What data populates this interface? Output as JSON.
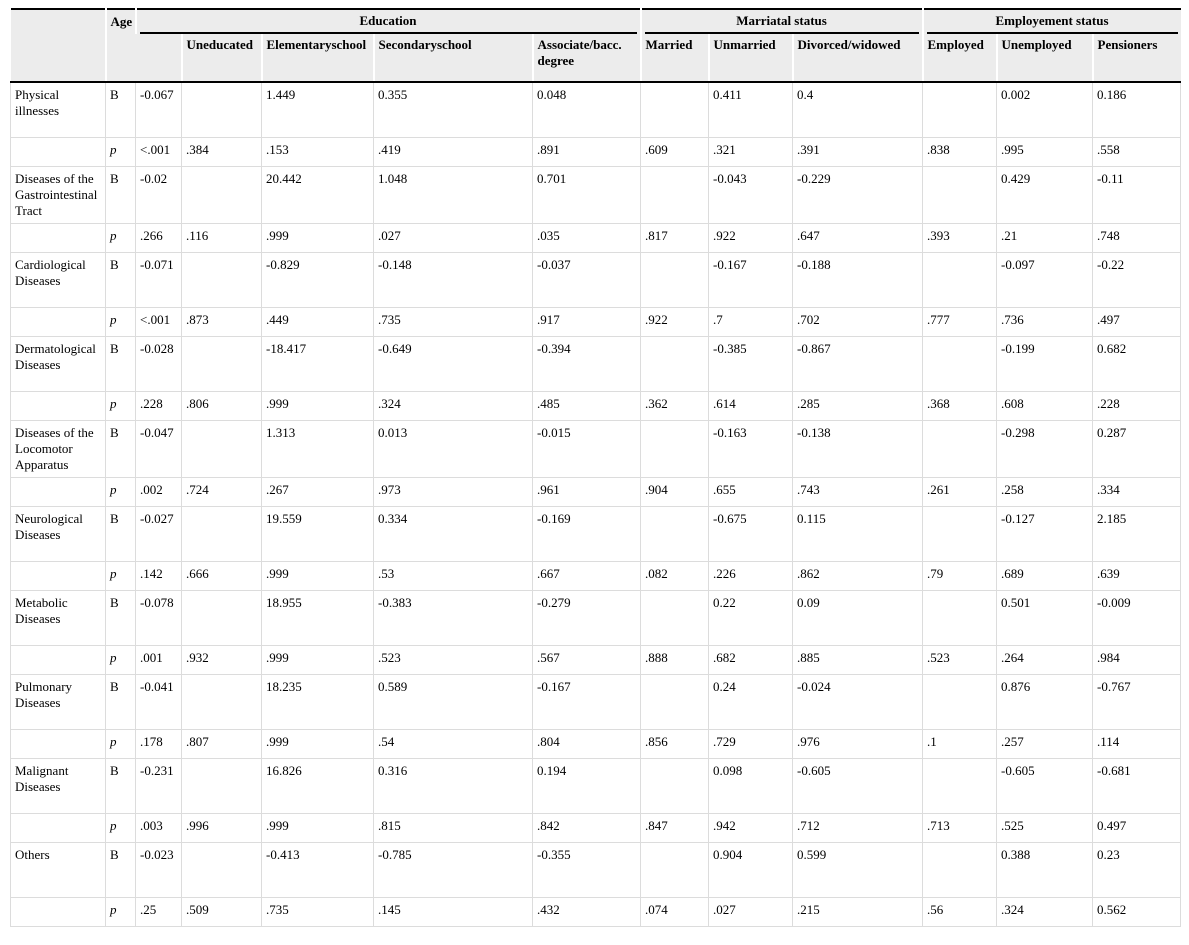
{
  "table": {
    "header": {
      "age_label": "Age",
      "groups": [
        {
          "label": "Education",
          "columns": [
            "Uneducated",
            "Elementaryschool",
            "Secondaryschool",
            "Associate/bacc. degree"
          ]
        },
        {
          "label": "Marriatal status",
          "columns": [
            "Married",
            "Unmarried",
            "Divorced/widowed"
          ]
        },
        {
          "label": "Employement status",
          "columns": [
            "Employed",
            "Unemployed",
            "Pensioners"
          ]
        }
      ]
    },
    "stat_labels": {
      "b": "B",
      "p": "p"
    },
    "column_keys": [
      "age",
      "uneducated",
      "elementaryschool",
      "secondaryschool",
      "associate-bacc-degree",
      "married",
      "unmarried",
      "divorced-widowed",
      "employed",
      "unemployed",
      "pensioners"
    ],
    "rows": [
      {
        "label": "Physical illnesses",
        "b": [
          "-0.067",
          "",
          "1.449",
          "0.355",
          "0.048",
          "",
          "0.411",
          "0.4",
          "",
          "0.002",
          "0.186"
        ],
        "p": [
          "<.001",
          ".384",
          ".153",
          ".419",
          ".891",
          ".609",
          ".321",
          ".391",
          ".838",
          ".995",
          ".558"
        ]
      },
      {
        "label": "Diseases of the Gastrointestinal Tract",
        "b": [
          "-0.02",
          "",
          "20.442",
          "1.048",
          "0.701",
          "",
          "-0.043",
          "-0.229",
          "",
          "0.429",
          "-0.11"
        ],
        "p": [
          ".266",
          ".116",
          ".999",
          ".027",
          ".035",
          ".817",
          ".922",
          ".647",
          ".393",
          ".21",
          ".748"
        ]
      },
      {
        "label": "Cardiological Diseases",
        "b": [
          "-0.071",
          "",
          "-0.829",
          "-0.148",
          "-0.037",
          "",
          "-0.167",
          "-0.188",
          "",
          "-0.097",
          "-0.22"
        ],
        "p": [
          "<.001",
          ".873",
          ".449",
          ".735",
          ".917",
          ".922",
          ".7",
          ".702",
          ".777",
          ".736",
          ".497"
        ]
      },
      {
        "label": "Dermatological Diseases",
        "b": [
          "-0.028",
          "",
          "-18.417",
          "-0.649",
          "-0.394",
          "",
          "-0.385",
          "-0.867",
          "",
          "-0.199",
          "0.682"
        ],
        "p": [
          ".228",
          ".806",
          ".999",
          ".324",
          ".485",
          ".362",
          ".614",
          ".285",
          ".368",
          ".608",
          ".228"
        ]
      },
      {
        "label": "Diseases of the Locomotor Apparatus",
        "b": [
          "-0.047",
          "",
          "1.313",
          "0.013",
          "-0.015",
          "",
          "-0.163",
          "-0.138",
          "",
          "-0.298",
          "0.287"
        ],
        "p": [
          ".002",
          ".724",
          ".267",
          ".973",
          ".961",
          ".904",
          ".655",
          ".743",
          ".261",
          ".258",
          ".334"
        ]
      },
      {
        "label": "Neurological Diseases",
        "b": [
          "-0.027",
          "",
          "19.559",
          "0.334",
          "-0.169",
          "",
          "-0.675",
          "0.115",
          "",
          "-0.127",
          "2.185"
        ],
        "p": [
          ".142",
          ".666",
          ".999",
          ".53",
          ".667",
          ".082",
          ".226",
          ".862",
          ".79",
          ".689",
          ".639"
        ]
      },
      {
        "label": "Metabolic Diseases",
        "b": [
          "-0.078",
          "",
          "18.955",
          "-0.383",
          "-0.279",
          "",
          "0.22",
          "0.09",
          "",
          "0.501",
          "-0.009"
        ],
        "p": [
          ".001",
          ".932",
          ".999",
          ".523",
          ".567",
          ".888",
          ".682",
          ".885",
          ".523",
          ".264",
          ".984"
        ]
      },
      {
        "label": "Pulmonary Diseases",
        "b": [
          "-0.041",
          "",
          "18.235",
          "0.589",
          "-0.167",
          "",
          "0.24",
          "-0.024",
          "",
          "0.876",
          "-0.767"
        ],
        "p": [
          ".178",
          ".807",
          ".999",
          ".54",
          ".804",
          ".856",
          ".729",
          ".976",
          ".1",
          ".257",
          ".114"
        ]
      },
      {
        "label": "Malignant Diseases",
        "b": [
          "-0.231",
          "",
          "16.826",
          "0.316",
          "0.194",
          "",
          "0.098",
          "-0.605",
          "",
          "-0.605",
          "-0.681"
        ],
        "p": [
          ".003",
          ".996",
          ".999",
          ".815",
          ".842",
          ".847",
          ".942",
          ".712",
          ".713",
          ".525",
          "0.497"
        ]
      },
      {
        "label": "Others",
        "b": [
          "-0.023",
          "",
          "-0.413",
          "-0.785",
          "-0.355",
          "",
          "0.904",
          "0.599",
          "",
          "0.388",
          "0.23"
        ],
        "p": [
          ".25",
          ".509",
          ".735",
          ".145",
          ".432",
          ".074",
          ".027",
          ".215",
          ".56",
          ".324",
          "0.562"
        ]
      }
    ]
  },
  "colors": {
    "header_bg": "#ececec",
    "grid_line": "#dcdcdc",
    "rule_line": "#000000"
  }
}
